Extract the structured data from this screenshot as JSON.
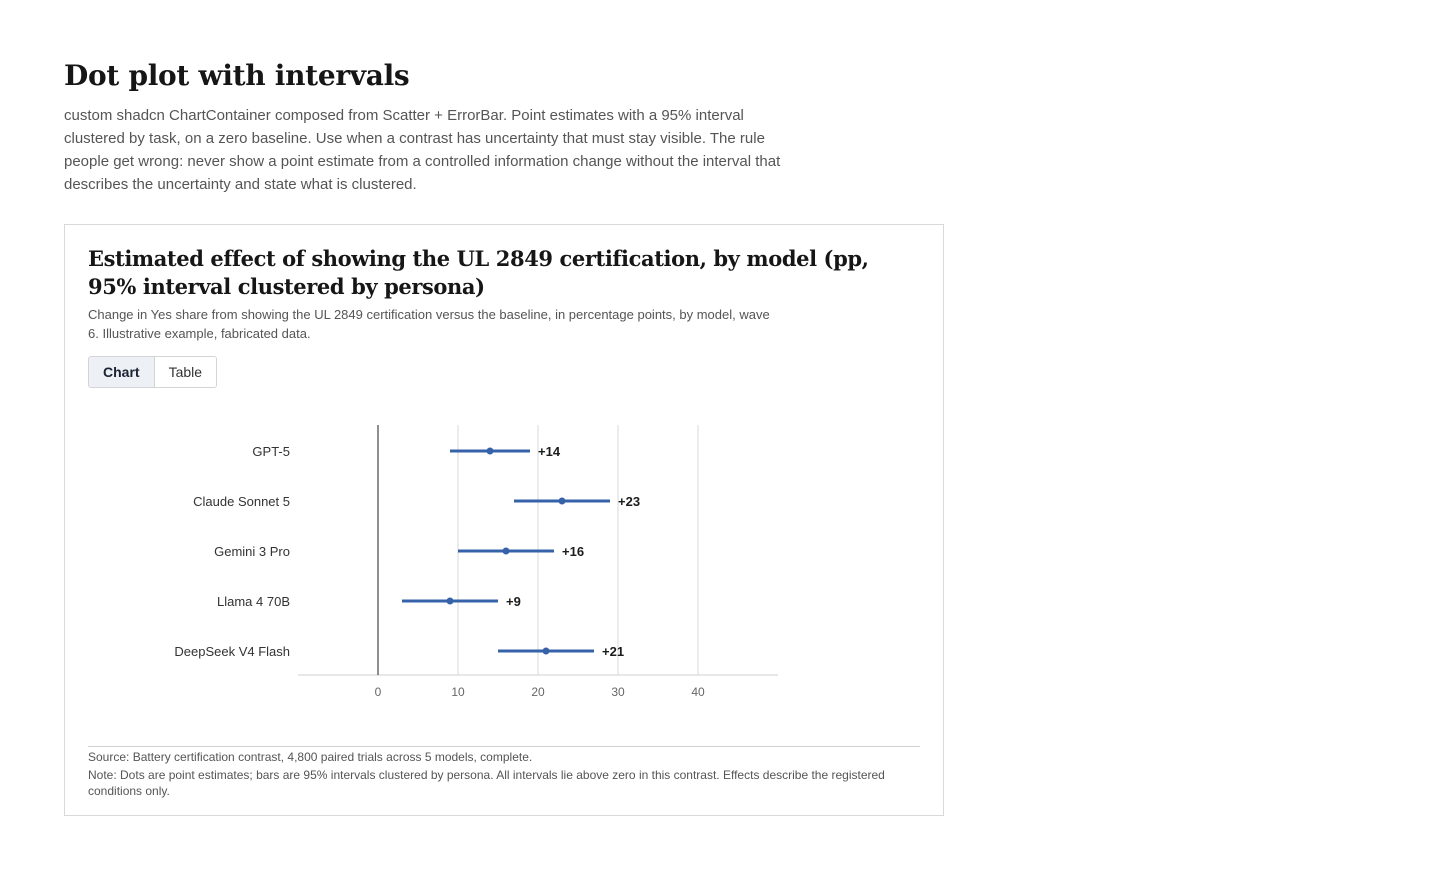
{
  "page": {
    "title": "Dot plot with intervals",
    "description": "custom shadcn ChartContainer composed from Scatter + ErrorBar. Point estimates with a 95% interval clustered by task, on a zero baseline. Use when a contrast has uncertainty that must stay visible. The rule people get wrong: never show a point estimate from a controlled information change without the interval that describes the uncertainty and state what is clustered."
  },
  "card": {
    "title": "Estimated effect of showing the UL 2849 certification, by model (pp, 95% interval clustered by persona)",
    "subtitle": "Change in Yes share from showing the UL 2849 certification versus the baseline, in percentage points, by model, wave 6. Illustrative example, fabricated data.",
    "tabs": [
      {
        "label": "Chart",
        "active": true
      },
      {
        "label": "Table",
        "active": false
      }
    ],
    "source": "Source: Battery certification contrast, 4,800 paired trials across 5 models, complete.",
    "note": "Note: Dots are point estimates; bars are 95% intervals clustered by persona. All intervals lie above zero in this contrast. Effects describe the registered conditions only."
  },
  "chart_data": {
    "type": "scatter",
    "orientation": "horizontal",
    "title": "",
    "xlabel": "",
    "ylabel": "",
    "xlim": [
      -10,
      50
    ],
    "xticks": [
      0,
      10,
      20,
      30,
      40
    ],
    "grid": "vertical",
    "baseline": 0,
    "color": "#3562a8",
    "series": [
      {
        "category": "GPT-5",
        "estimate": 14,
        "low": 9,
        "high": 19,
        "label": "+14"
      },
      {
        "category": "Claude Sonnet 5",
        "estimate": 23,
        "low": 17,
        "high": 29,
        "label": "+23"
      },
      {
        "category": "Gemini 3 Pro",
        "estimate": 16,
        "low": 10,
        "high": 22,
        "label": "+16"
      },
      {
        "category": "Llama 4 70B",
        "estimate": 9,
        "low": 3,
        "high": 15,
        "label": "+9"
      },
      {
        "category": "DeepSeek V4 Flash",
        "estimate": 21,
        "low": 15,
        "high": 27,
        "label": "+21"
      }
    ]
  }
}
